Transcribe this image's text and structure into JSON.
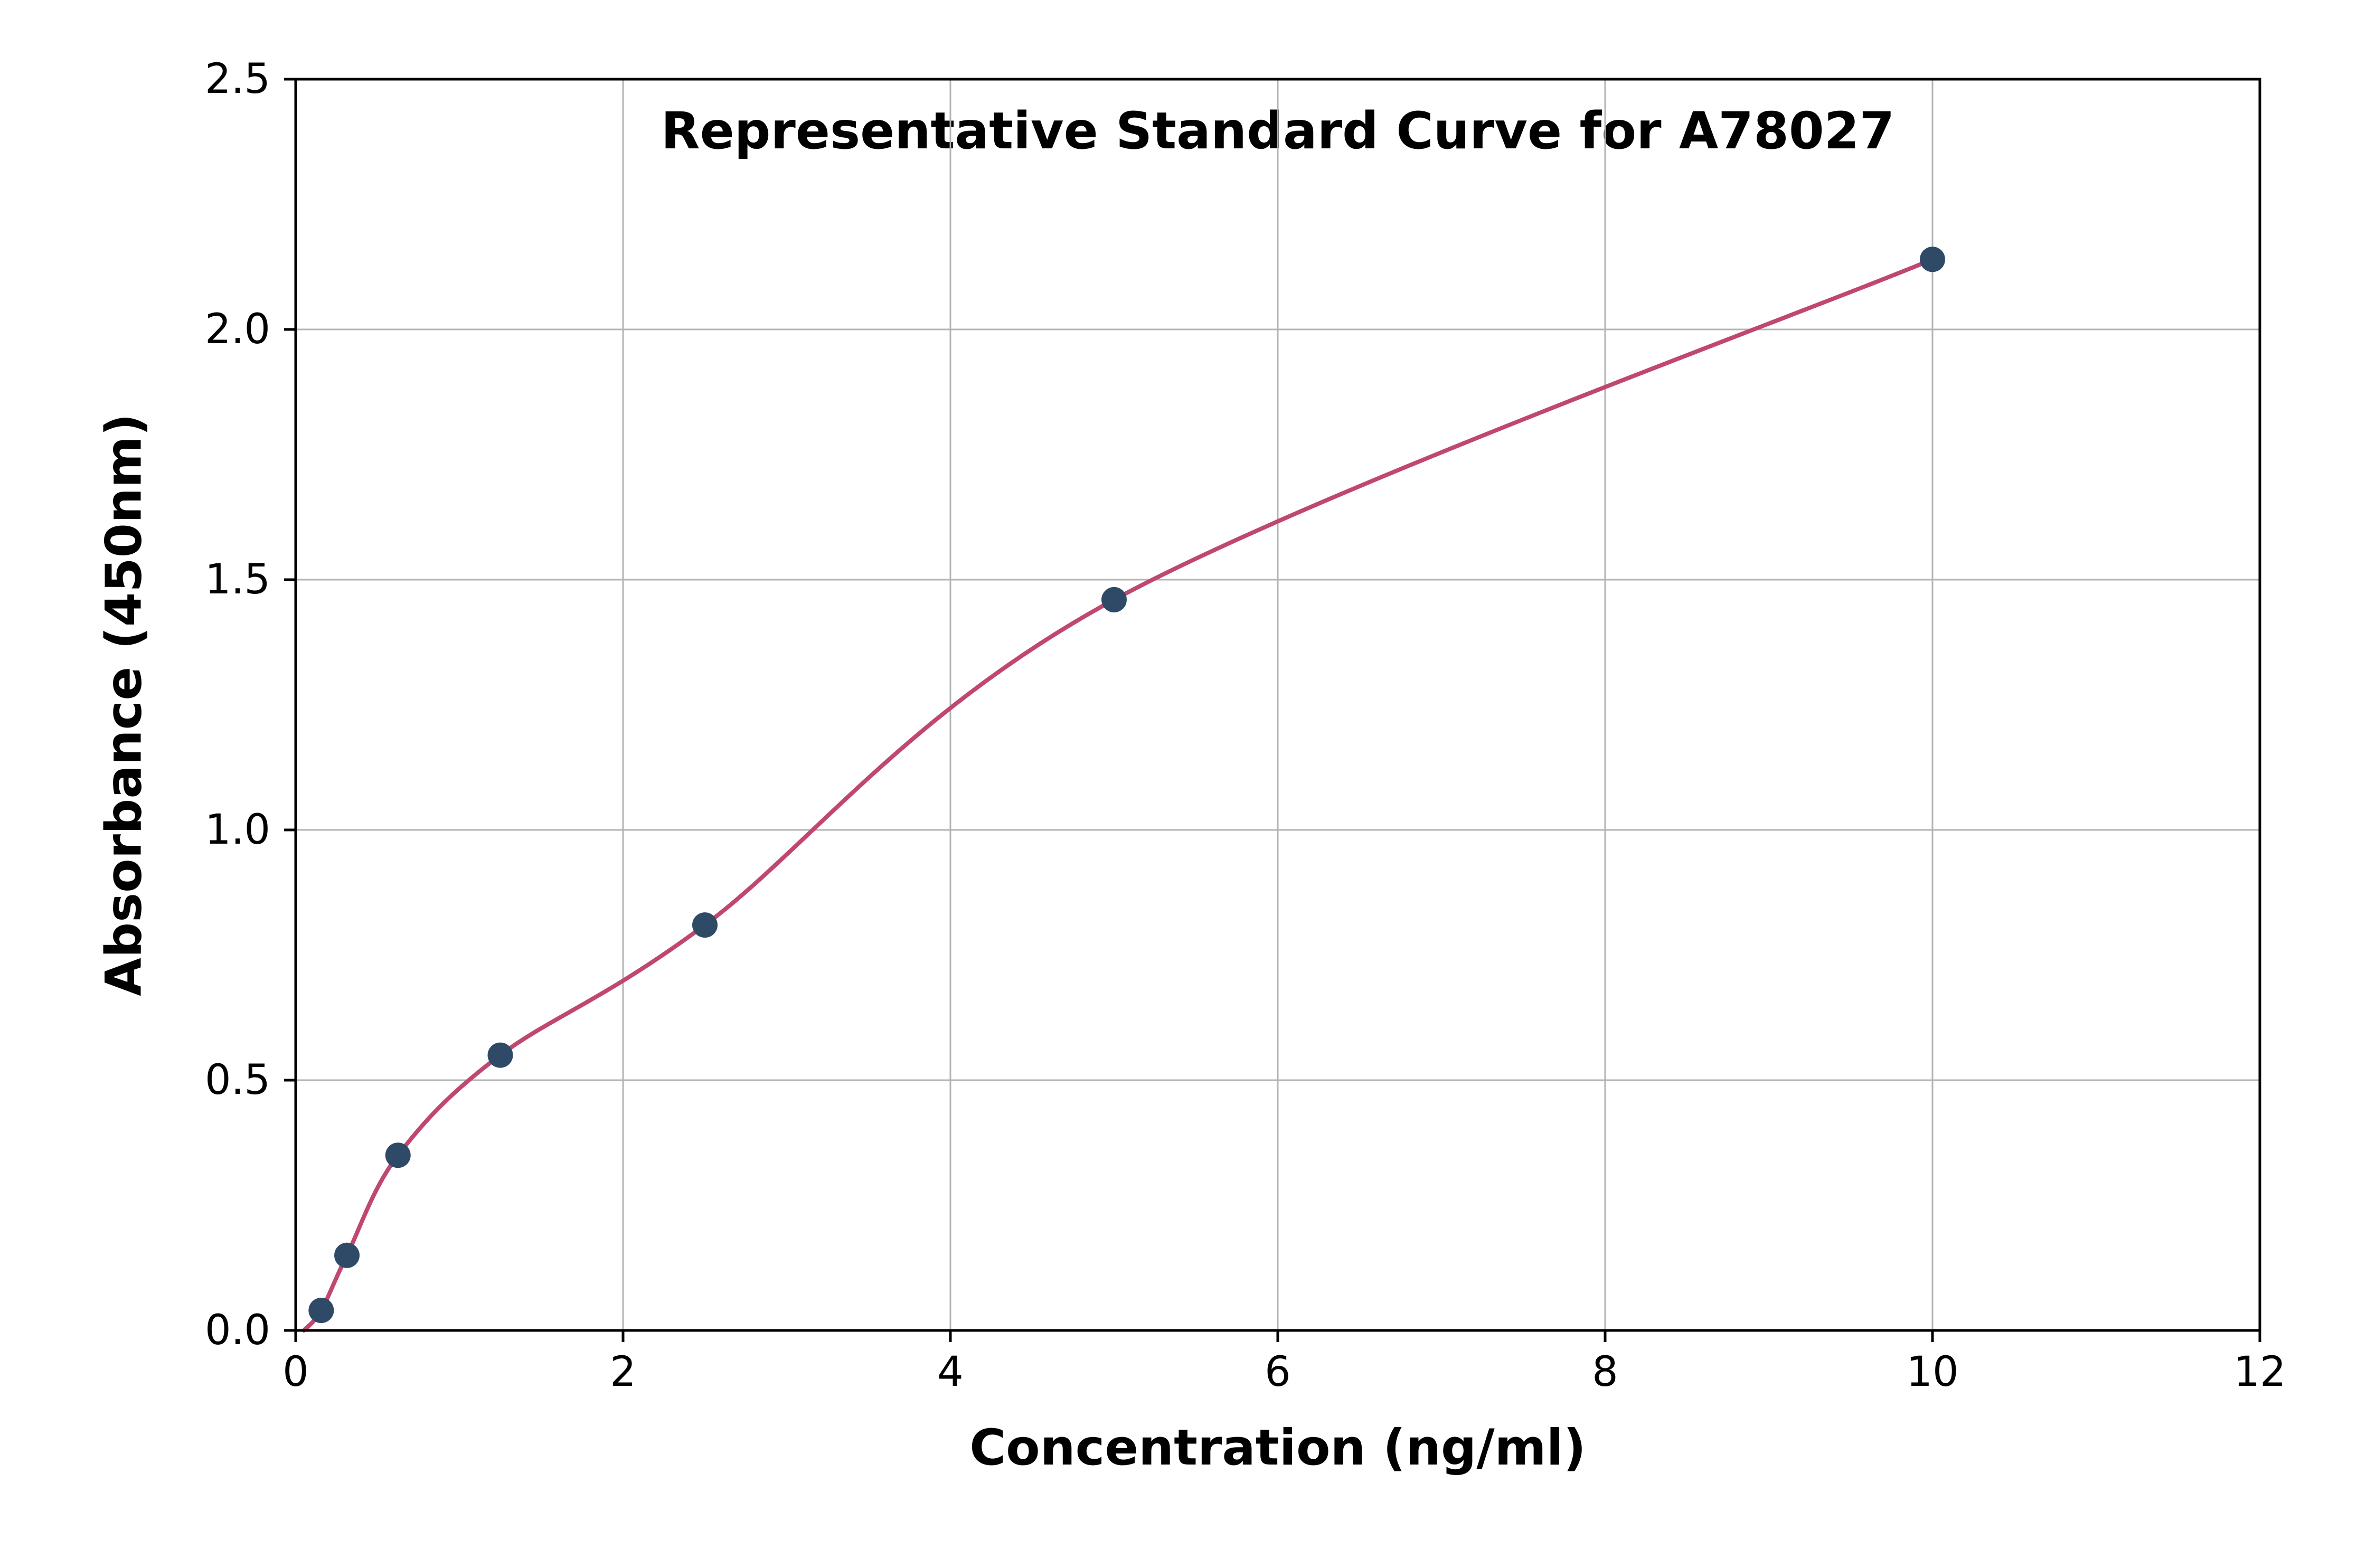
{
  "chart": {
    "title": "Representative Standard Curve for A78027",
    "xlabel": "Concentration (ng/ml)",
    "ylabel": "Absorbance (450nm)"
  },
  "chart_data": {
    "type": "scatter",
    "title": "Representative Standard Curve for A78027",
    "xlabel": "Concentration (ng/ml)",
    "ylabel": "Absorbance (450nm)",
    "xlim": [
      0,
      12
    ],
    "ylim": [
      0,
      2.5
    ],
    "xticks": [
      0,
      2,
      4,
      6,
      8,
      10,
      12
    ],
    "xtick_labels": [
      "0",
      "2",
      "4",
      "6",
      "8",
      "10",
      "12"
    ],
    "yticks": [
      0.0,
      0.5,
      1.0,
      1.5,
      2.0,
      2.5
    ],
    "ytick_labels": [
      "0.0",
      "0.5",
      "1.0",
      "1.5",
      "2.0",
      "2.5"
    ],
    "grid": true,
    "legend": "none",
    "points": [
      {
        "x": 0.156,
        "y": 0.04
      },
      {
        "x": 0.313,
        "y": 0.15
      },
      {
        "x": 0.625,
        "y": 0.35
      },
      {
        "x": 1.25,
        "y": 0.55
      },
      {
        "x": 2.5,
        "y": 0.81
      },
      {
        "x": 5.0,
        "y": 1.46
      },
      {
        "x": 10.0,
        "y": 2.14
      }
    ],
    "curve_start": {
      "x": 0.05,
      "y": 0.0
    },
    "colors": {
      "curve": "#c0476f",
      "points": "#2e4a66",
      "grid": "#b3b3b3",
      "frame": "#000000",
      "background": "#ffffff"
    }
  }
}
